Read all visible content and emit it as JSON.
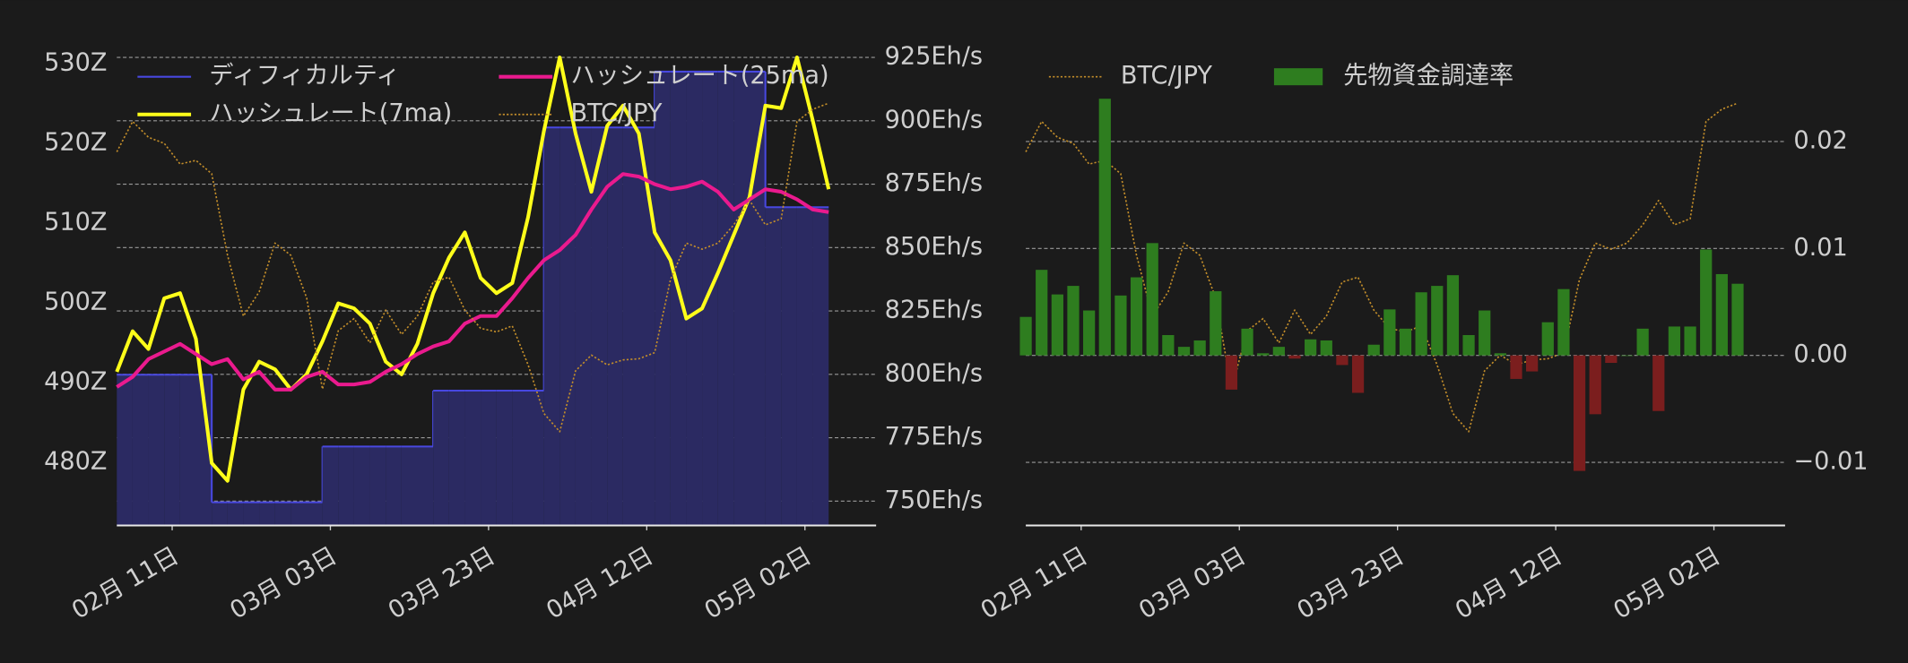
{
  "chart_data": [
    {
      "type": "line",
      "legend": "upper left",
      "legend_columns": 2,
      "grid": "y2",
      "x": [
        -7,
        -5,
        -3,
        -1,
        1,
        3,
        5,
        7,
        9,
        11,
        13,
        15,
        17,
        19,
        21,
        23,
        25,
        27,
        29,
        31,
        33,
        35,
        37,
        39,
        41,
        43,
        45,
        47,
        49,
        51,
        53,
        55,
        57,
        59,
        61,
        63,
        65,
        67,
        69,
        71,
        73,
        75,
        77,
        79,
        81,
        83
      ],
      "xlim": [
        -7,
        89
      ],
      "xticks": [
        {
          "value": 0,
          "label": "02月 11日"
        },
        {
          "value": 20,
          "label": "03月 03日"
        },
        {
          "value": 40,
          "label": "03月 23日"
        },
        {
          "value": 60,
          "label": "04月 12日"
        },
        {
          "value": 80,
          "label": "05月 02日"
        }
      ],
      "ylim": [
        472.1,
        531.1
      ],
      "yticks": [
        {
          "value": 530,
          "label": "530Z"
        },
        {
          "value": 520,
          "label": "520Z"
        },
        {
          "value": 510,
          "label": "510Z"
        },
        {
          "value": 500,
          "label": "500Z"
        },
        {
          "value": 490,
          "label": "490Z"
        },
        {
          "value": 480,
          "label": "480Z"
        }
      ],
      "y2lim": [
        740.4,
        926
      ],
      "y2ticks": [
        {
          "value": 925,
          "label": "925Eh/s"
        },
        {
          "value": 900,
          "label": "900Eh/s"
        },
        {
          "value": 875,
          "label": "875Eh/s"
        },
        {
          "value": 850,
          "label": "850Eh/s"
        },
        {
          "value": 825,
          "label": "825Eh/s"
        },
        {
          "value": 800,
          "label": "800Eh/s"
        },
        {
          "value": 775,
          "label": "775Eh/s"
        },
        {
          "value": 750,
          "label": "750Eh/s"
        }
      ],
      "y3lim": [
        10630000,
        15500000
      ],
      "series": [
        {
          "name": "ディフィカルティ",
          "color": "#4848e0",
          "fill_color": "#2b2a62",
          "style": "step",
          "width": 1.5,
          "axis": "y",
          "values": [
            491,
            491,
            491,
            491,
            491,
            491,
            475,
            475,
            475,
            475,
            475,
            475,
            475,
            482,
            482,
            482,
            482,
            482,
            482,
            482,
            489,
            489,
            489,
            489,
            489,
            489,
            489,
            522,
            522,
            522,
            522,
            522,
            522,
            522,
            529,
            529,
            529,
            529,
            529,
            529,
            529,
            512,
            512,
            512,
            512,
            512
          ]
        },
        {
          "name": "ハッシュレート(7ma)",
          "color": "#ffff1a",
          "style": "solid",
          "width": 3,
          "axis": "y2",
          "values": [
            801,
            817,
            810,
            830,
            832,
            814,
            765,
            758,
            794,
            805,
            802,
            794,
            800,
            813,
            828,
            826,
            820,
            805,
            800,
            812,
            832,
            846,
            856,
            838,
            832,
            836,
            862,
            896,
            925,
            895,
            872,
            898,
            906,
            895,
            856,
            845,
            822,
            826,
            840,
            855,
            870,
            906,
            905,
            925,
            900,
            873
          ]
        },
        {
          "name": "ハッシュレート(25ma)",
          "color": "#ea1a8e",
          "style": "solid",
          "width": 3,
          "axis": "y2",
          "values": [
            795,
            799,
            806,
            809,
            812,
            808,
            804,
            806,
            798,
            801,
            794,
            794,
            799,
            801,
            796,
            796,
            797,
            801,
            804,
            808,
            811,
            813,
            820,
            823,
            823,
            830,
            838,
            845,
            849,
            855,
            865,
            874,
            879,
            878,
            875,
            873,
            874,
            876,
            872,
            865,
            869,
            873,
            872,
            869,
            865,
            864
          ]
        },
        {
          "name": "BTC/JPY",
          "color": "#c28d2a",
          "style": "dotted",
          "width": 1.2,
          "axis": "y3",
          "values": [
            14496000,
            14811000,
            14647000,
            14584000,
            14370000,
            14408000,
            14270000,
            13426000,
            12796000,
            13048000,
            13552000,
            13426000,
            12985000,
            12041000,
            12645000,
            12771000,
            12519000,
            12859000,
            12607000,
            12796000,
            13149000,
            13199000,
            12859000,
            12670000,
            12633000,
            12695000,
            12292000,
            11789000,
            11600000,
            12230000,
            12393000,
            12292000,
            12343000,
            12355000,
            12418000,
            13174000,
            13552000,
            13489000,
            13552000,
            13741000,
            13993000,
            13741000,
            13804000,
            14811000,
            14937000,
            15000000
          ]
        }
      ]
    },
    {
      "type": "bar",
      "legend": "upper left",
      "legend_columns": 2,
      "grid": "y2",
      "x": [
        -7,
        -5,
        -3,
        -1,
        1,
        3,
        5,
        7,
        9,
        11,
        13,
        15,
        17,
        19,
        21,
        23,
        25,
        27,
        29,
        31,
        33,
        35,
        37,
        39,
        41,
        43,
        45,
        47,
        49,
        51,
        53,
        55,
        57,
        59,
        61,
        63,
        65,
        67,
        69,
        71,
        73,
        75,
        77,
        79,
        81,
        83
      ],
      "xlim": [
        -7,
        89
      ],
      "xticks": [
        {
          "value": 0,
          "label": "02月 11日"
        },
        {
          "value": 20,
          "label": "03月 03日"
        },
        {
          "value": 40,
          "label": "03月 23日"
        },
        {
          "value": 60,
          "label": "04月 12日"
        },
        {
          "value": 80,
          "label": "05月 02日"
        }
      ],
      "ylim": [
        10630000,
        15500000
      ],
      "y2lim": [
        -0.0159,
        0.0281
      ],
      "y2ticks": [
        0.02,
        0.01,
        {
          "value": 0,
          "label": "0.00"
        },
        {
          "value": -0.01,
          "label": "−0.01"
        }
      ],
      "series": [
        {
          "name": "BTC/JPY",
          "type": "line",
          "color": "#c28d2a",
          "style": "dotted",
          "width": 1.2,
          "axis": "y",
          "values": [
            14496000,
            14811000,
            14647000,
            14584000,
            14370000,
            14408000,
            14270000,
            13426000,
            12796000,
            13048000,
            13552000,
            13426000,
            12985000,
            12041000,
            12645000,
            12771000,
            12519000,
            12859000,
            12607000,
            12796000,
            13149000,
            13199000,
            12859000,
            12670000,
            12633000,
            12695000,
            12292000,
            11789000,
            11600000,
            12230000,
            12393000,
            12292000,
            12343000,
            12355000,
            12418000,
            13174000,
            13552000,
            13489000,
            13552000,
            13741000,
            13993000,
            13741000,
            13804000,
            14811000,
            14937000,
            15000000
          ]
        },
        {
          "name": "先物資金調達率",
          "type": "bar",
          "color": "#2e7d1f",
          "negative_color": "#7b1e1e",
          "axis": "y2",
          "values": [
            0.0036,
            0.008,
            0.0057,
            0.0065,
            0.0042,
            0.024,
            0.0056,
            0.0073,
            0.0105,
            0.0019,
            0.0008,
            0.0014,
            0.006,
            -0.0032,
            0.0025,
            0.0002,
            0.0008,
            -0.0003,
            0.0015,
            0.0014,
            -0.0009,
            -0.0035,
            0.001,
            0.0043,
            0.0025,
            0.0059,
            0.0065,
            0.0075,
            0.0019,
            0.0042,
            0.0002,
            -0.0022,
            -0.0015,
            0.0031,
            0.0062,
            -0.0108,
            -0.0055,
            -0.0007,
            0,
            0.0025,
            -0.0052,
            0.0027,
            0.0027,
            0.0099,
            0.0076,
            0.0067
          ]
        }
      ]
    }
  ]
}
